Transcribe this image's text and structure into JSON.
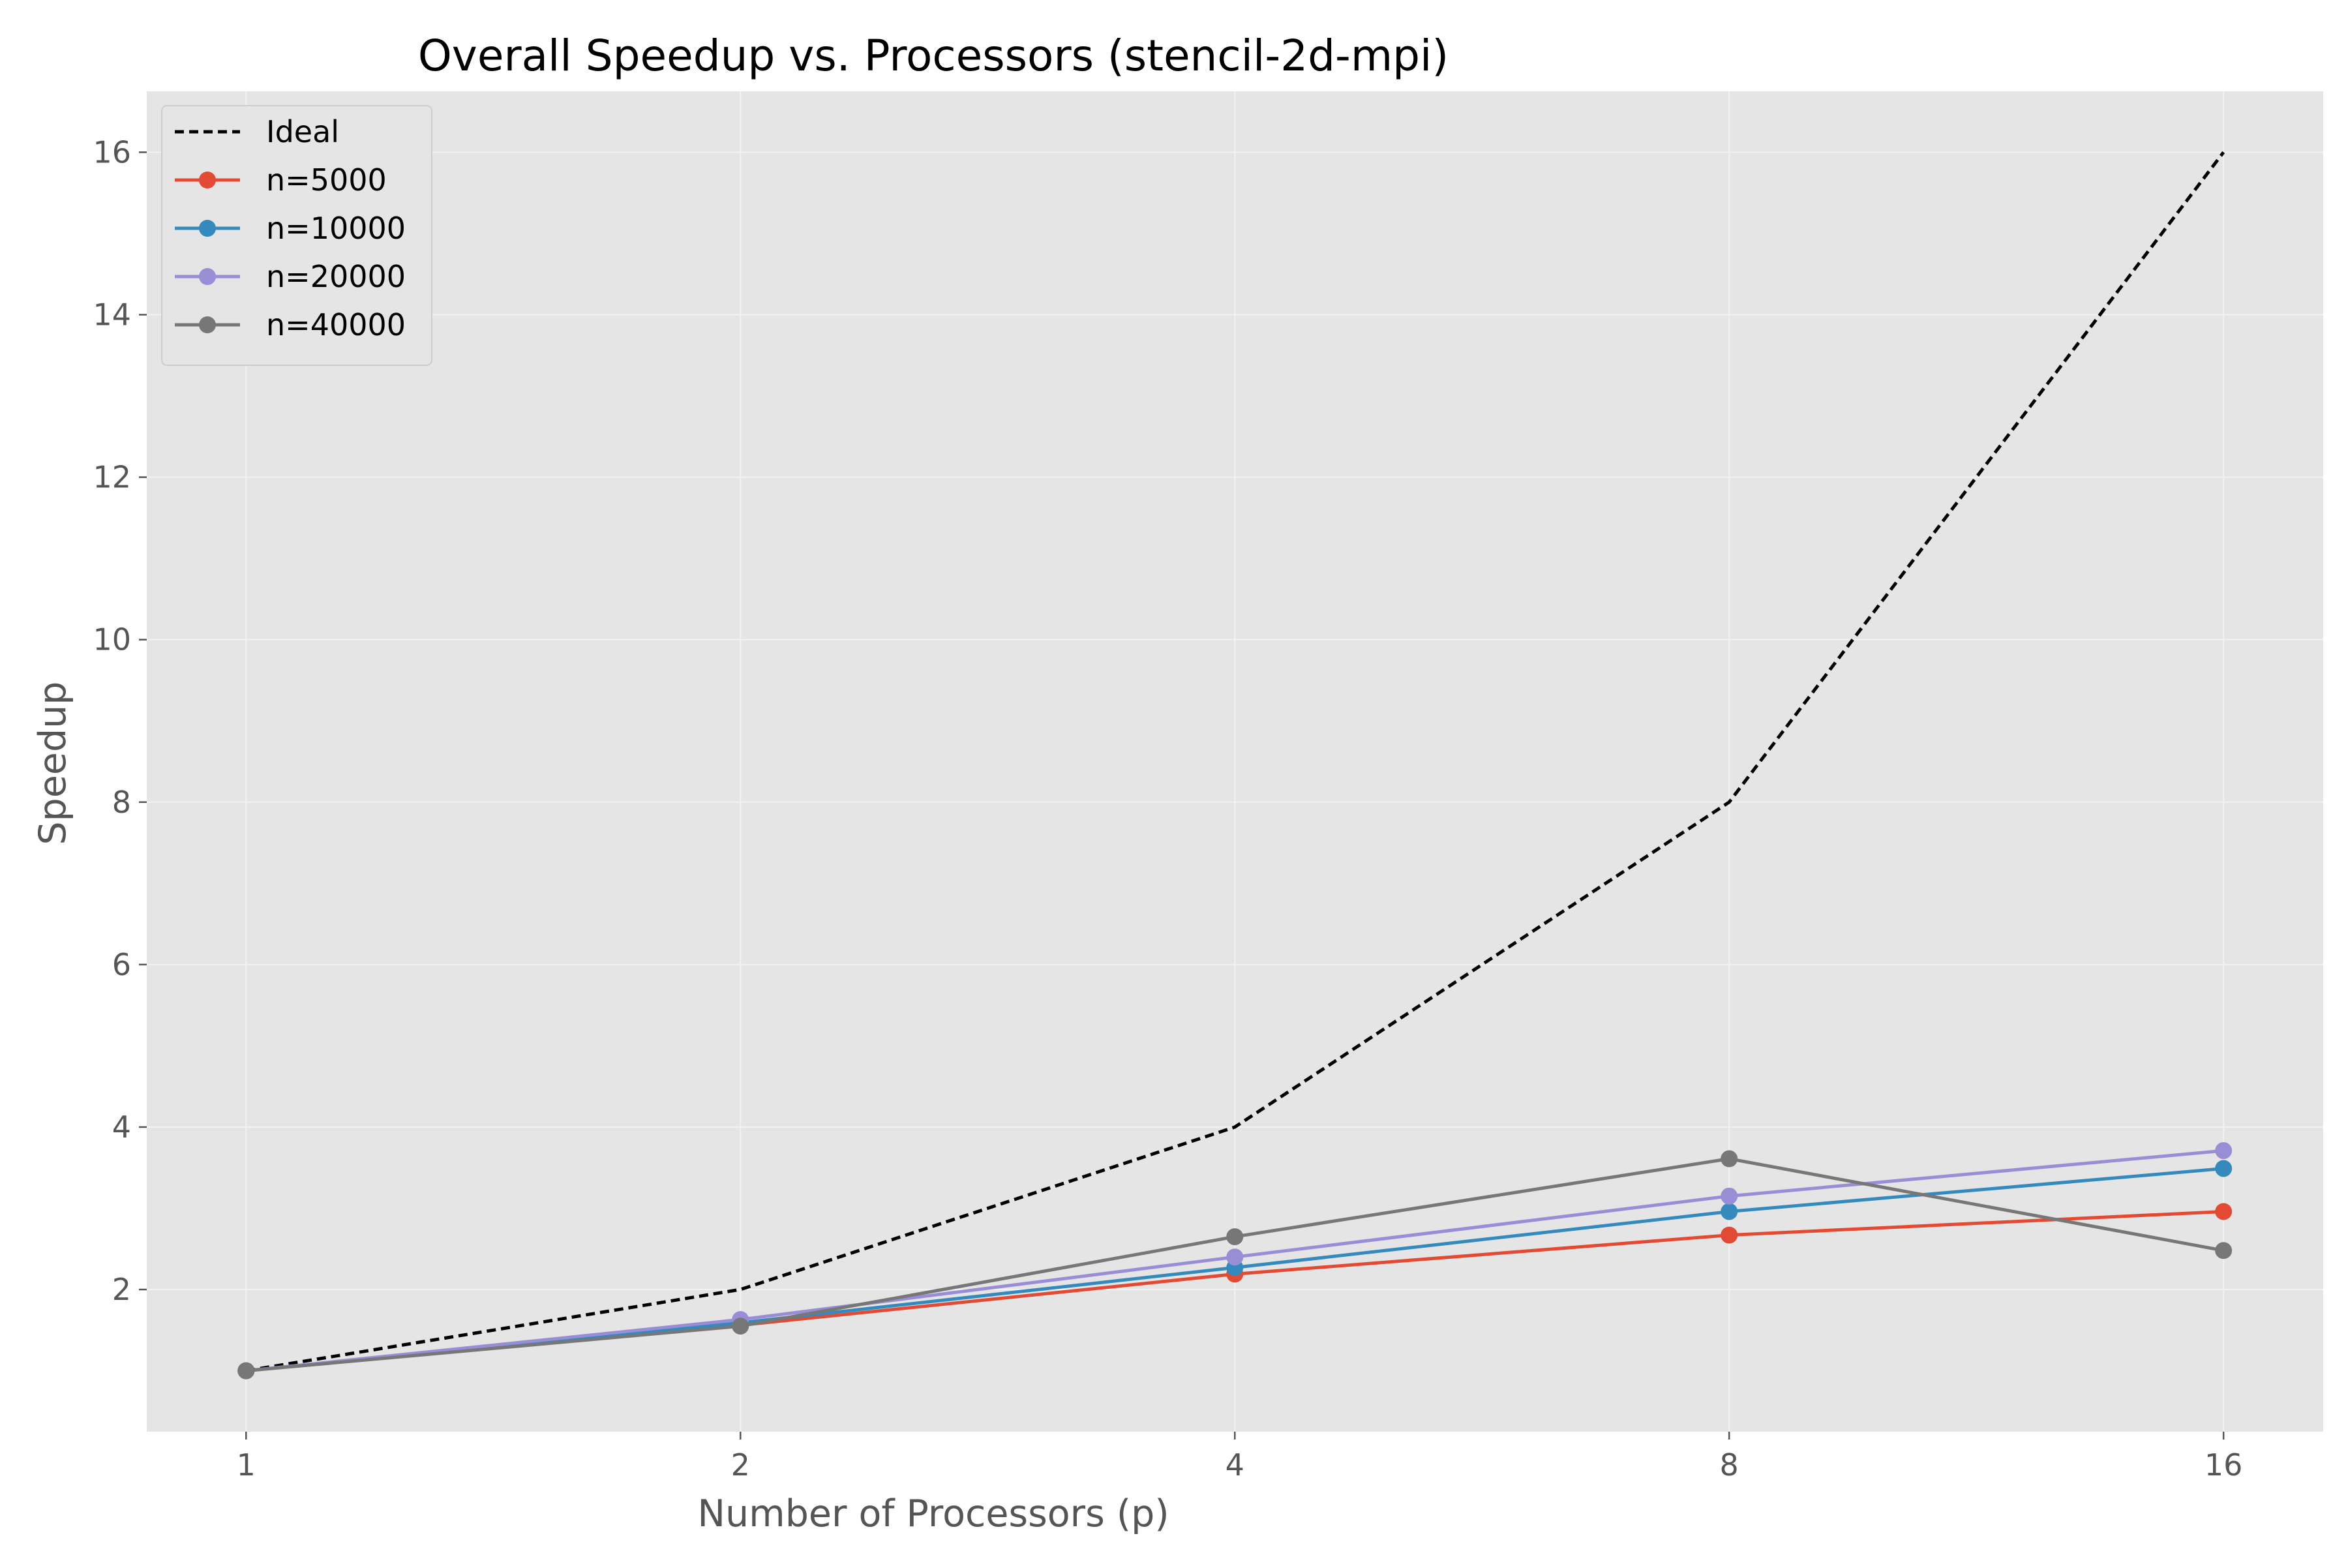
{
  "chart_data": {
    "type": "line",
    "title": "Overall Speedup vs. Processors (stencil-2d-mpi)",
    "xlabel": "Number of Processors (p)",
    "ylabel": "Speedup",
    "x_scale": "log2",
    "x": [
      1,
      2,
      4,
      8,
      16
    ],
    "x_tick_labels": [
      "1",
      "2",
      "4",
      "8",
      "16"
    ],
    "xlim": [
      0.87,
      18.4
    ],
    "ylim": [
      0.25,
      16.75
    ],
    "y_ticks": [
      2,
      4,
      6,
      8,
      10,
      12,
      14,
      16
    ],
    "grid": true,
    "legend_position": "top-left",
    "series": [
      {
        "name": "Ideal",
        "values": [
          1,
          2,
          4,
          8,
          16
        ],
        "color": "#000000",
        "style": "dashed",
        "marker": "none"
      },
      {
        "name": "n=5000",
        "values": [
          1.0,
          1.56,
          2.19,
          2.67,
          2.96
        ],
        "color": "#E24A33",
        "style": "solid",
        "marker": "circle"
      },
      {
        "name": "n=10000",
        "values": [
          1.0,
          1.59,
          2.27,
          2.96,
          3.49
        ],
        "color": "#348ABD",
        "style": "solid",
        "marker": "circle"
      },
      {
        "name": "n=20000",
        "values": [
          1.0,
          1.63,
          2.4,
          3.15,
          3.71
        ],
        "color": "#988ED5",
        "style": "solid",
        "marker": "circle"
      },
      {
        "name": "n=40000",
        "values": [
          1.0,
          1.55,
          2.65,
          3.61,
          2.48
        ],
        "color": "#777777",
        "style": "solid",
        "marker": "circle"
      }
    ]
  },
  "colors": {
    "plot_background": "#E5E5E5",
    "grid": "#F2F2F2",
    "tick_text": "#555555",
    "title_text": "#000000"
  }
}
